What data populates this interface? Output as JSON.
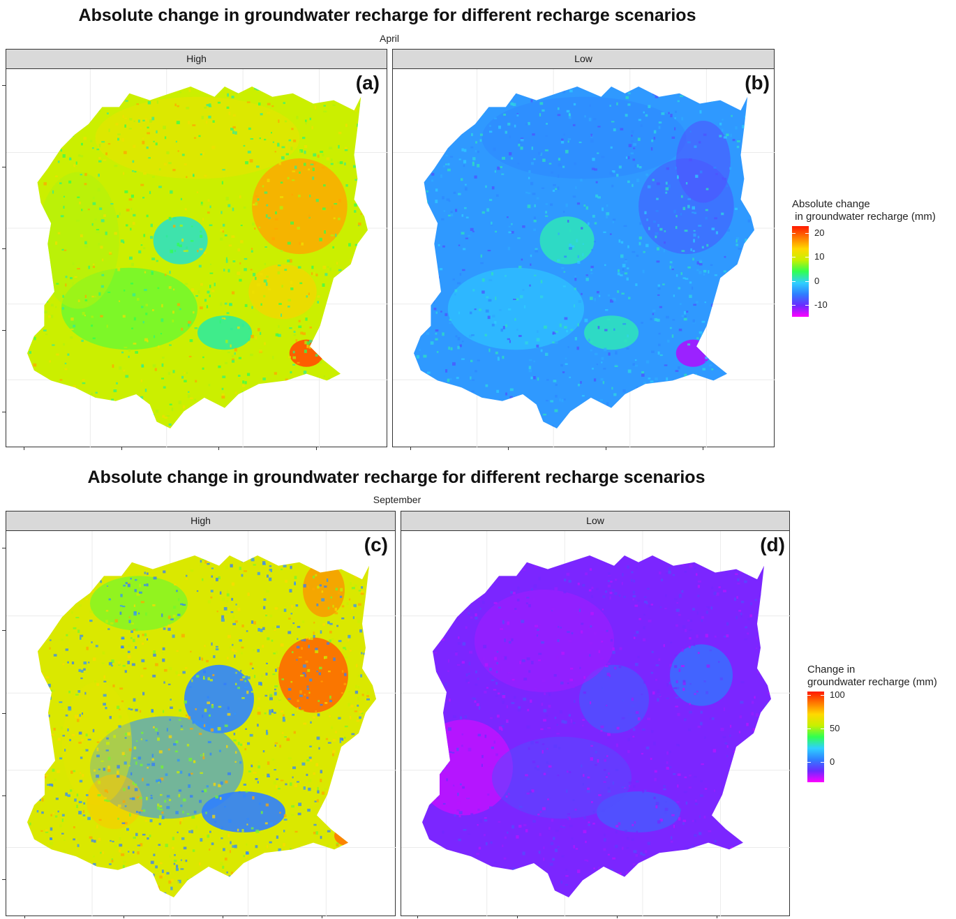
{
  "chart_data": [
    {
      "type": "heatmap",
      "title": "Absolute change in groundwater recharge for different recharge scenarios",
      "subtitle": "April",
      "facets": [
        {
          "strip": "High",
          "tag": "(a)",
          "range_approx": [
            5,
            22
          ],
          "dominant_value": 10
        },
        {
          "strip": "Low",
          "tag": "(b)",
          "range_approx": [
            -12,
            0
          ],
          "dominant_value": -5
        }
      ],
      "legend": {
        "title_lines": [
          "Absolute change",
          " in groundwater recharge (mm)"
        ],
        "ticks": [
          20,
          10,
          0,
          -10
        ],
        "limits": [
          -15,
          23
        ],
        "colors": [
          "#ff00ff",
          "#6a2bff",
          "#2f7fff",
          "#2fd0ff",
          "#30ff50",
          "#c8f000",
          "#ffd800",
          "#ff7800",
          "#ff1800"
        ]
      }
    },
    {
      "type": "heatmap",
      "title": "Absolute change in groundwater recharge for different recharge scenarios",
      "subtitle": "September",
      "facets": [
        {
          "strip": "High",
          "tag": "(c)",
          "range_approx": [
            0,
            95
          ],
          "dominant_value": 55
        },
        {
          "strip": "Low",
          "tag": "(d)",
          "range_approx": [
            -25,
            0
          ],
          "dominant_value": -15
        }
      ],
      "legend": {
        "title_lines": [
          "Change in",
          "groundwater recharge (mm)"
        ],
        "ticks": [
          100,
          50,
          0
        ],
        "limits": [
          -30,
          105
        ],
        "colors": [
          "#ff00ff",
          "#6a2bff",
          "#2f7fff",
          "#2fd0ff",
          "#30ff50",
          "#c8f000",
          "#ffd800",
          "#ff7800",
          "#ff1800"
        ]
      }
    }
  ]
}
